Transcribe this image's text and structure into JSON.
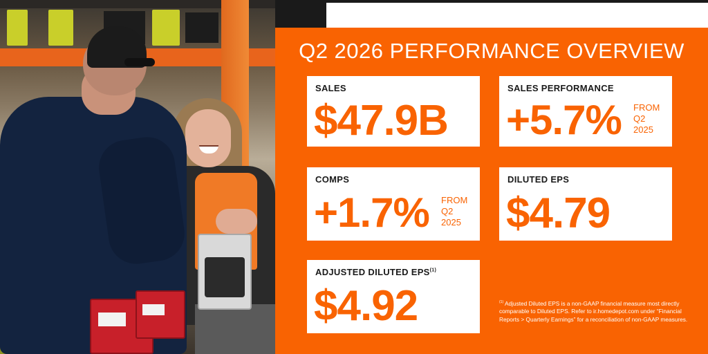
{
  "photo": {
    "alt": "Store associate smiling at customer at checkout"
  },
  "title": "Q2 2026 PERFORMANCE OVERVIEW",
  "cards": {
    "sales": {
      "label": "SALES",
      "value": "$47.9B"
    },
    "sales_performance": {
      "label": "SALES PERFORMANCE",
      "value": "+5.7%",
      "note": [
        "FROM",
        "Q2",
        "2025"
      ]
    },
    "comps": {
      "label": "COMPS",
      "value": "+1.7%",
      "note": [
        "FROM",
        "Q2",
        "2025"
      ]
    },
    "diluted_eps": {
      "label": "DILUTED EPS",
      "value": "$4.79"
    },
    "adjusted_diluted_eps": {
      "label": "ADJUSTED DILUTED EPS",
      "footnote_marker": "(1)",
      "value": "$4.92"
    }
  },
  "footnote": {
    "marker": "(1)",
    "text": "Adjusted Diluted EPS is a non-GAAP financial measure most directly comparable to Diluted EPS. Refer to ir.homedepot.com under “Financial Reports > Quarterly Earnings” for a reconciliation of non-GAAP measures."
  },
  "colors": {
    "brand_orange": "#f96302",
    "card_bg": "#ffffff",
    "label_text": "#1a1a1a"
  }
}
